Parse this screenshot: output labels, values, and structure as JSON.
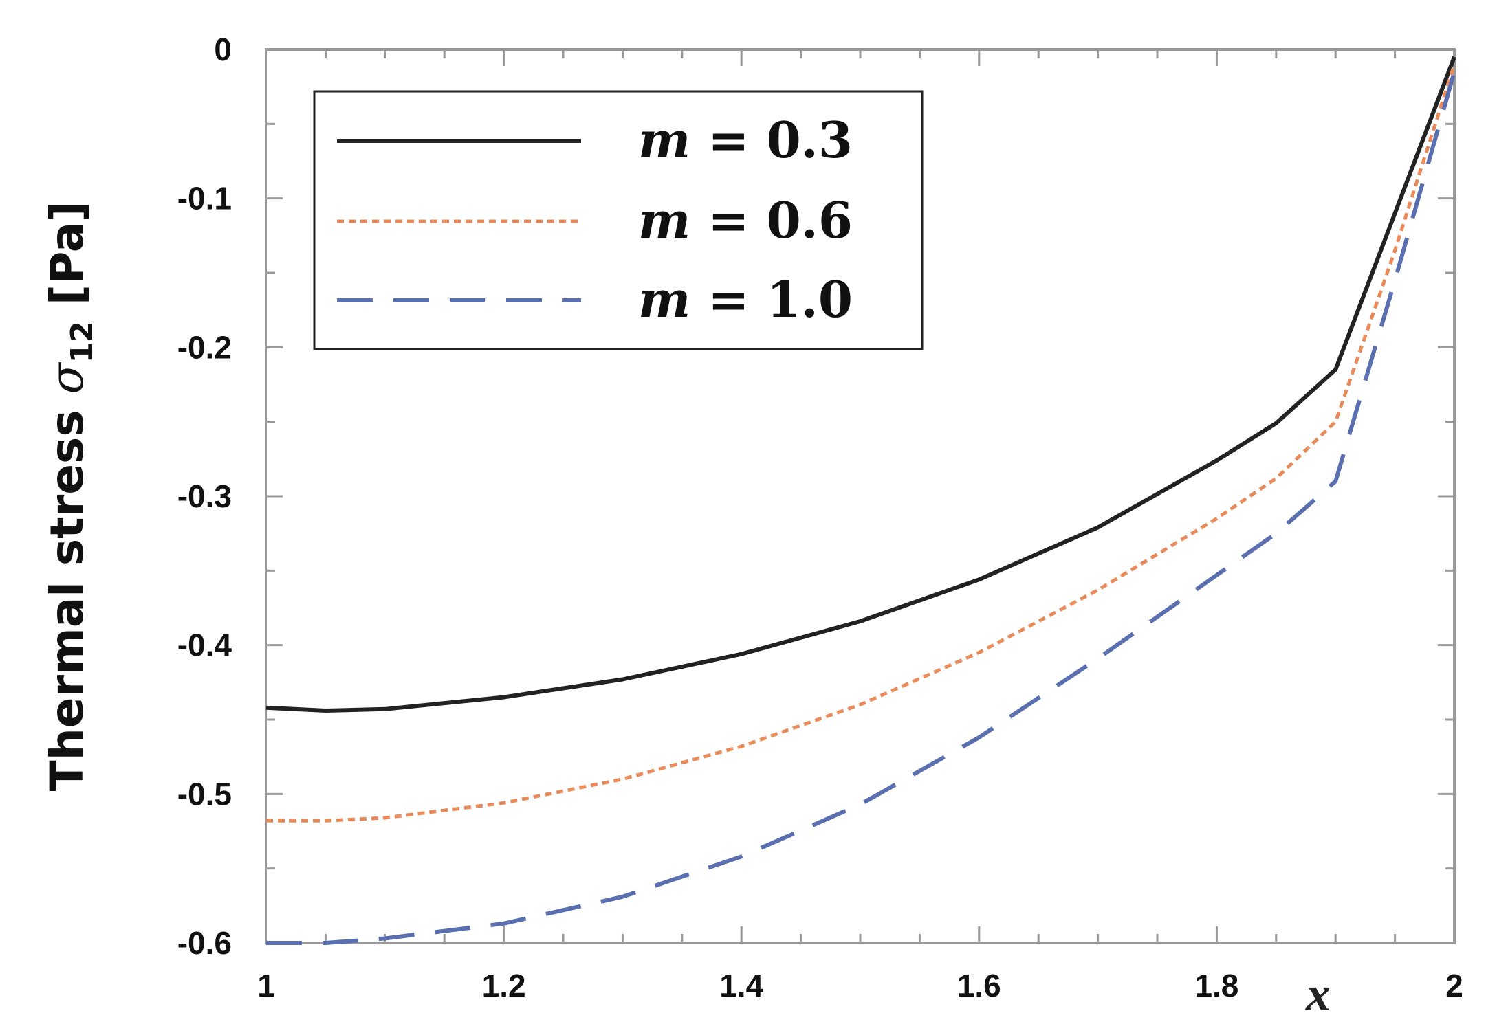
{
  "chart_data": {
    "type": "line",
    "title": "",
    "xlabel": "x",
    "ylabel": {
      "prefix": "Thermal stress ",
      "symbol": "σ",
      "subscript": "12",
      "unit": " [Pa]"
    },
    "xlim": [
      1,
      2
    ],
    "ylim": [
      -0.6,
      0
    ],
    "x_ticks": [
      {
        "value": 1,
        "label": "1"
      },
      {
        "value": 1.2,
        "label": "1.2"
      },
      {
        "value": 1.4,
        "label": "1.4"
      },
      {
        "value": 1.6,
        "label": "1.6"
      },
      {
        "value": 1.8,
        "label": "1.8"
      },
      {
        "value": 2,
        "label": "2"
      }
    ],
    "y_ticks": [
      {
        "value": 0,
        "label": "0"
      },
      {
        "value": -0.1,
        "label": "-0.1"
      },
      {
        "value": -0.2,
        "label": "-0.2"
      },
      {
        "value": -0.3,
        "label": "-0.3"
      },
      {
        "value": -0.4,
        "label": "-0.4"
      },
      {
        "value": -0.5,
        "label": "-0.5"
      },
      {
        "value": -0.6,
        "label": "-0.6"
      }
    ],
    "grid": false,
    "legend_position": "top-left",
    "series": [
      {
        "name": "m = 0.3",
        "legend_var": "m",
        "legend_eq": " = ",
        "legend_val": "0.3",
        "color": "#222222",
        "dash": "solid",
        "x": [
          1.0,
          1.05,
          1.1,
          1.2,
          1.3,
          1.4,
          1.5,
          1.6,
          1.7,
          1.8,
          1.85,
          1.9,
          1.95,
          2.0
        ],
        "y": [
          -0.442,
          -0.444,
          -0.443,
          -0.435,
          -0.423,
          -0.406,
          -0.384,
          -0.356,
          -0.321,
          -0.276,
          -0.251,
          -0.215,
          -0.11,
          -0.005
        ]
      },
      {
        "name": "m = 0.6",
        "legend_var": "m",
        "legend_eq": " = ",
        "legend_val": "0.6",
        "color": "#e98a5a",
        "dash": "short",
        "x": [
          1.0,
          1.05,
          1.1,
          1.2,
          1.3,
          1.4,
          1.5,
          1.6,
          1.7,
          1.8,
          1.85,
          1.9,
          1.95,
          2.0
        ],
        "y": [
          -0.518,
          -0.518,
          -0.516,
          -0.506,
          -0.49,
          -0.468,
          -0.44,
          -0.405,
          -0.363,
          -0.315,
          -0.288,
          -0.25,
          -0.135,
          -0.01
        ]
      },
      {
        "name": "m = 1.0",
        "legend_var": "m",
        "legend_eq": " = ",
        "legend_val": "1.0",
        "color": "#5a6fb0",
        "dash": "long",
        "x": [
          1.0,
          1.05,
          1.1,
          1.2,
          1.3,
          1.4,
          1.5,
          1.6,
          1.7,
          1.8,
          1.85,
          1.9,
          1.95,
          2.0
        ],
        "y": [
          -0.6,
          -0.6,
          -0.597,
          -0.587,
          -0.569,
          -0.542,
          -0.507,
          -0.462,
          -0.409,
          -0.353,
          -0.325,
          -0.29,
          -0.155,
          -0.015
        ]
      }
    ]
  }
}
